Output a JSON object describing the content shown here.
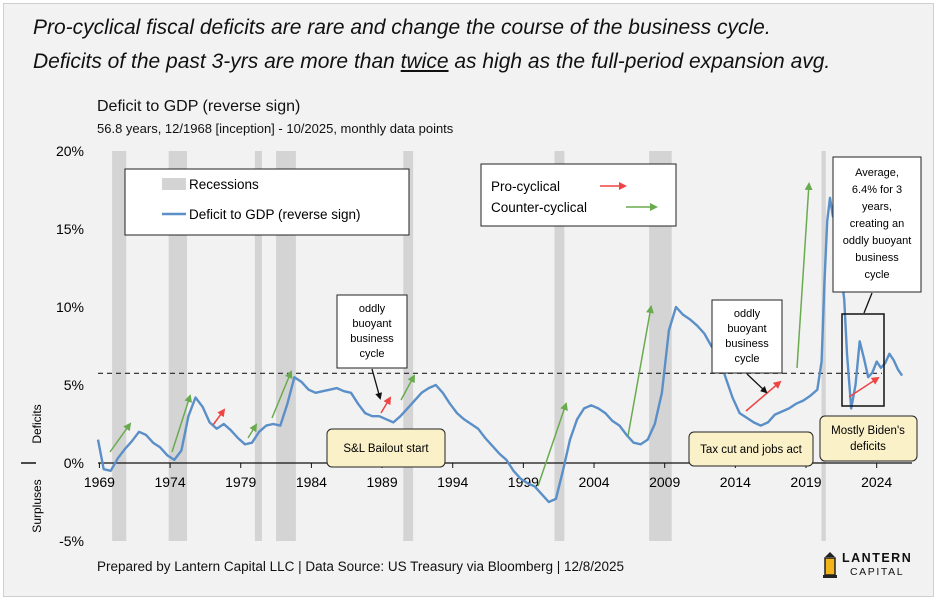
{
  "headline": {
    "line1": "Pro-cyclical fiscal deficits are rare and change the course of the business cycle.",
    "line2_a": "Deficits of the past 3-yrs are more than ",
    "line2_b": "twice",
    "line2_c": " as high as the full-period expansion avg."
  },
  "subtitle": "Deficit to GDP (reverse sign)",
  "subsubtitle": "56.8 years, 12/1968 [inception] - 10/2025, monthly data points",
  "footer": "Prepared by Lantern Capital LLC | Data Source: US Treasury via Bloomberg | 12/8/2025",
  "logo": {
    "word1": "LANTERN",
    "word2": "CAPITAL"
  },
  "colors": {
    "series": "#5b8fc7",
    "recession": "#d4d4d4",
    "pro_cyclical": "#ee4444",
    "counter_cyclical": "#6aab4f",
    "callout_fill": "#fbf1c9",
    "background": "#f2f2f2"
  },
  "legend_main": {
    "recessions": "Recessions",
    "series": "Deficit to GDP (reverse sign)"
  },
  "legend_arrows": {
    "pro": "Pro-cyclical",
    "counter": "Counter-cyclical"
  },
  "side_labels": {
    "deficits": "Deficits",
    "surpluses": "Surpluses"
  },
  "annotations": {
    "buoyant_1": [
      "oddly",
      "buoyant",
      "business",
      "cycle"
    ],
    "buoyant_2": [
      "oddly",
      "buoyant",
      "business",
      "cycle"
    ],
    "average": [
      "Average,",
      "6.4% for 3",
      "years,",
      "creating an",
      "oddly buoyant",
      "business",
      "cycle"
    ],
    "sl_bailout": "S&L Bailout start",
    "tax_cut": "Tax cut and jobs act",
    "biden": [
      "Mostly Biden's",
      "deficits"
    ]
  },
  "chart_data": {
    "type": "line",
    "title": "Deficit to GDP (reverse sign)",
    "xlabel": "",
    "ylabel": "",
    "x_ticks": [
      "1969",
      "1974",
      "1979",
      "1984",
      "1989",
      "1994",
      "1999",
      "2004",
      "2009",
      "2014",
      "2019",
      "2024"
    ],
    "y_ticks": [
      "-5%",
      "0%",
      "5%",
      "10%",
      "15%",
      "20%"
    ],
    "xlim": [
      1968.9,
      2026.5
    ],
    "ylim": [
      -5,
      20
    ],
    "reference_line": {
      "value": 5.75,
      "style": "dashed",
      "label": "full-period expansion average"
    },
    "recessions": [
      [
        1969.9,
        1970.9
      ],
      [
        1973.9,
        1975.2
      ],
      [
        1980.0,
        1980.5
      ],
      [
        1981.5,
        1982.9
      ],
      [
        1990.5,
        1991.2
      ],
      [
        2001.2,
        2001.9
      ],
      [
        2007.9,
        2009.5
      ],
      [
        2020.1,
        2020.4
      ]
    ],
    "series": [
      {
        "name": "Deficit to GDP (reverse sign)",
        "x": [
          1968.9,
          1969.3,
          1969.8,
          1970.3,
          1970.8,
          1971.3,
          1971.8,
          1972.3,
          1972.8,
          1973.3,
          1973.8,
          1974.3,
          1974.8,
          1975.3,
          1975.8,
          1976.3,
          1976.8,
          1977.3,
          1977.8,
          1978.3,
          1978.8,
          1979.3,
          1979.8,
          1980.3,
          1980.8,
          1981.3,
          1981.8,
          1982.3,
          1982.8,
          1983.3,
          1983.8,
          1984.3,
          1984.8,
          1985.3,
          1985.8,
          1986.3,
          1986.8,
          1987.3,
          1987.8,
          1988.3,
          1988.8,
          1989.3,
          1989.8,
          1990.3,
          1990.8,
          1991.3,
          1991.8,
          1992.3,
          1992.8,
          1993.3,
          1993.8,
          1994.3,
          1994.8,
          1995.3,
          1995.8,
          1996.3,
          1996.8,
          1997.3,
          1997.8,
          1998.3,
          1998.8,
          1999.3,
          1999.8,
          2000.3,
          2000.8,
          2001.3,
          2001.8,
          2002.3,
          2002.8,
          2003.3,
          2003.8,
          2004.3,
          2004.8,
          2005.3,
          2005.8,
          2006.3,
          2006.8,
          2007.3,
          2007.8,
          2008.3,
          2008.8,
          2009.3,
          2009.8,
          2010.3,
          2010.8,
          2011.3,
          2011.8,
          2012.3,
          2012.8,
          2013.3,
          2013.8,
          2014.3,
          2014.8,
          2015.3,
          2015.8,
          2016.3,
          2016.8,
          2017.3,
          2017.8,
          2018.3,
          2018.8,
          2019.3,
          2019.8,
          2020.1,
          2020.3,
          2020.5,
          2020.7,
          2020.9,
          2021.1,
          2021.3,
          2021.5,
          2021.7,
          2021.9,
          2022.2,
          2022.5,
          2022.8,
          2023.1,
          2023.4,
          2023.7,
          2024.0,
          2024.3,
          2024.6,
          2024.9,
          2025.2,
          2025.5,
          2025.8
        ],
        "values": [
          1.5,
          -0.4,
          -0.5,
          0.3,
          0.9,
          1.4,
          2.0,
          1.8,
          1.3,
          1.0,
          0.5,
          0.2,
          0.8,
          3.0,
          4.2,
          3.6,
          2.6,
          2.2,
          2.5,
          2.1,
          1.6,
          1.2,
          1.3,
          2.0,
          2.4,
          2.5,
          2.4,
          3.8,
          5.5,
          5.2,
          4.7,
          4.5,
          4.6,
          4.7,
          4.8,
          4.6,
          4.5,
          3.8,
          3.2,
          3.0,
          3.0,
          2.8,
          2.6,
          3.0,
          3.5,
          4.0,
          4.5,
          4.8,
          5.0,
          4.5,
          3.8,
          3.2,
          2.8,
          2.5,
          2.2,
          1.6,
          1.1,
          0.6,
          0.2,
          -0.5,
          -1.0,
          -1.3,
          -1.5,
          -2.0,
          -2.5,
          -2.3,
          -0.5,
          1.5,
          2.8,
          3.5,
          3.7,
          3.5,
          3.2,
          2.7,
          2.4,
          1.8,
          1.3,
          1.2,
          1.5,
          2.5,
          4.5,
          8.5,
          10.0,
          9.5,
          9.2,
          8.8,
          8.3,
          7.5,
          6.9,
          5.5,
          4.2,
          3.2,
          2.9,
          2.6,
          2.4,
          2.6,
          3.1,
          3.3,
          3.5,
          3.8,
          4.0,
          4.3,
          4.7,
          6.5,
          11.5,
          15.5,
          17.0,
          15.8,
          18.0,
          15.5,
          12.0,
          10.5,
          7.0,
          3.5,
          5.0,
          7.8,
          6.7,
          5.5,
          5.8,
          6.5,
          6.1,
          6.4,
          7.0,
          6.6,
          6.0,
          5.6
        ]
      }
    ]
  }
}
